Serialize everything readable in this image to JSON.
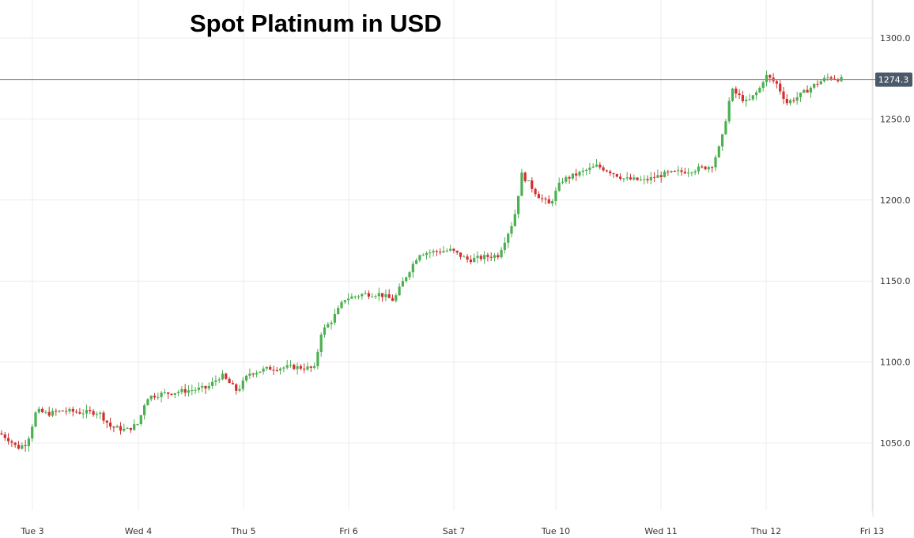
{
  "chart_data": {
    "type": "candlestick",
    "title": "Spot Platinum in USD",
    "xlabel": "",
    "ylabel": "",
    "ylim": [
      1005,
      1310
    ],
    "y_ticks": [
      1050.0,
      1100.0,
      1150.0,
      1200.0,
      1250.0,
      1300.0
    ],
    "y_tick_labels": [
      "1050.0",
      "1100.0",
      "1150.0",
      "1200.0",
      "1250.0",
      "1300.0"
    ],
    "x_tick_labels": [
      "Tue 3",
      "Wed 4",
      "Thu 5",
      "Fri 6",
      "Sat 7",
      "Tue 10",
      "Wed 11",
      "Thu 12",
      "Fri 13"
    ],
    "grid": true,
    "last_price": 1274.3,
    "last_price_label": "1274.3",
    "colors": {
      "up": "#4caf50",
      "down": "#d32f2f",
      "price_line": "#888888",
      "price_tag": "#4a5a6a",
      "grid": "#ececec"
    },
    "key_levels": [
      {
        "x_label": "Tue 3",
        "approx_price": 1048
      },
      {
        "x_label": "Wed 4",
        "approx_price": 1060
      },
      {
        "x_label": "Thu 5",
        "approx_price": 1090
      },
      {
        "x_label": "Fri 6",
        "approx_price": 1140
      },
      {
        "x_label": "Sat 7",
        "approx_price": 1168
      },
      {
        "x_label": "Tue 10",
        "approx_price": 1212
      },
      {
        "x_label": "Wed 11",
        "approx_price": 1215
      },
      {
        "x_label": "Thu 12",
        "approx_price": 1280
      },
      {
        "x_label": "Fri 13",
        "approx_price": 1274.3
      }
    ]
  }
}
